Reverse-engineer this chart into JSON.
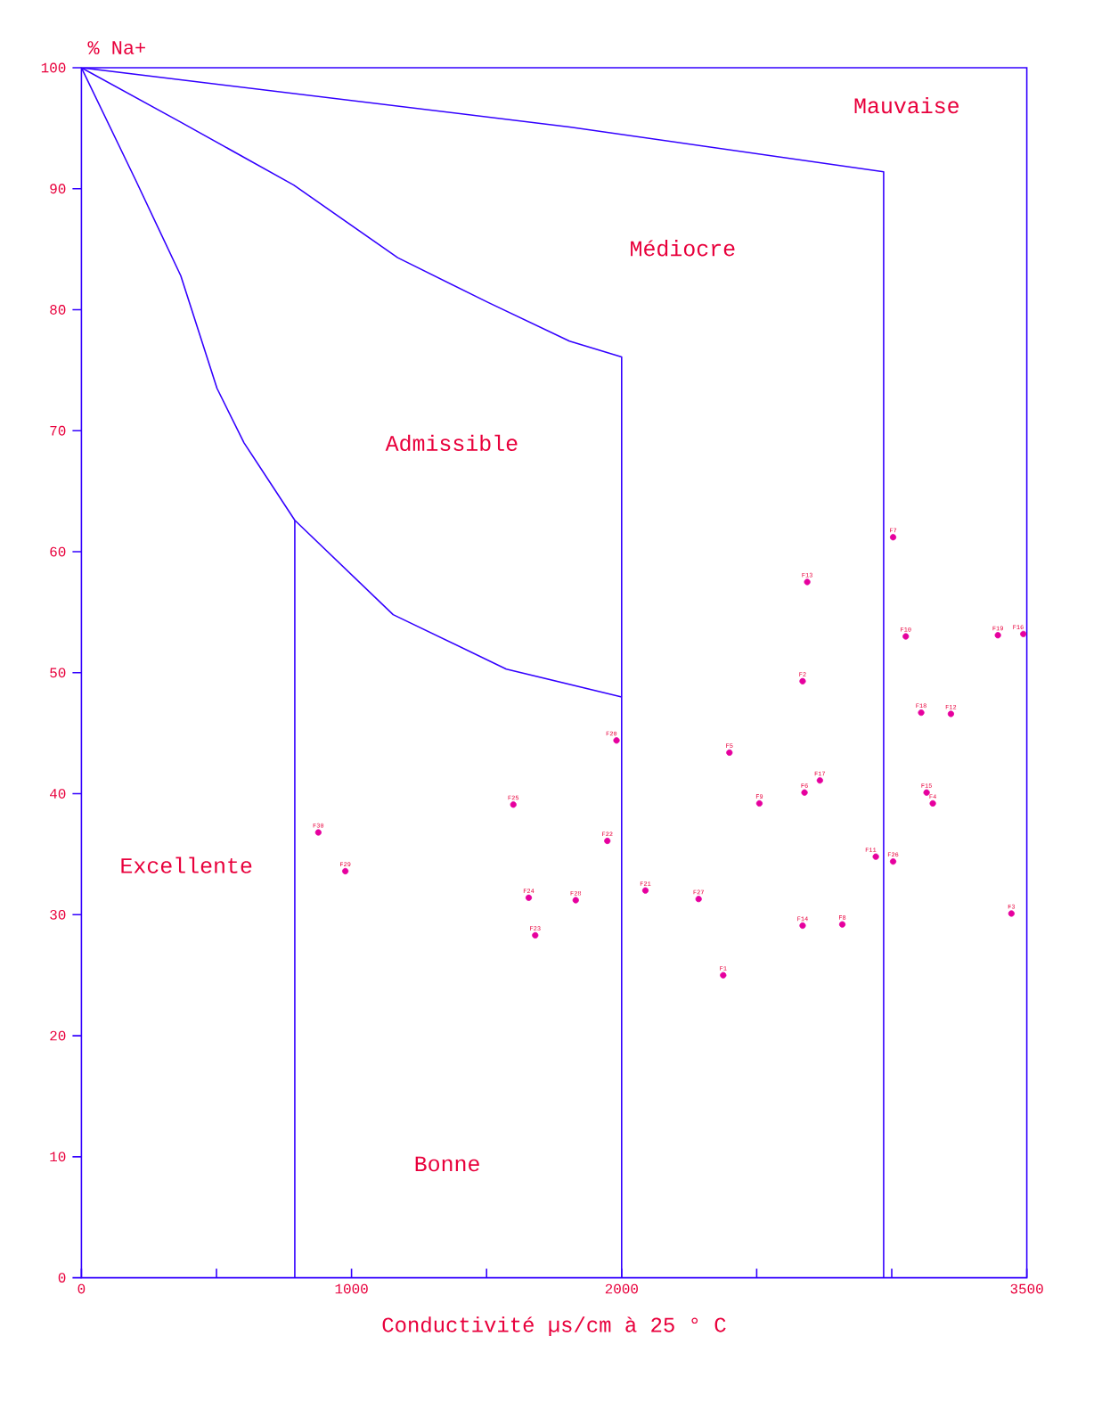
{
  "chart_data": {
    "type": "scatter",
    "xlabel": "Conductivité µs/cm à 25 ° C",
    "ylabel": "% Na+",
    "xlim": [
      0,
      3500
    ],
    "ylim": [
      0,
      100
    ],
    "xticks": [
      0,
      {
        "value": 500,
        "label": null
      },
      1000,
      {
        "value": 1500,
        "label": null
      },
      2000,
      {
        "value": 2500,
        "label": null
      },
      {
        "value": 3000,
        "label": null
      },
      3500
    ],
    "yticks": [
      0,
      10,
      20,
      30,
      40,
      50,
      60,
      70,
      80,
      90,
      100
    ],
    "grid": false,
    "annotations": [
      "Mauvaise",
      "Médiocre",
      "Admissible",
      "Excellente",
      "Bonne"
    ],
    "series": [
      {
        "color": "#e6009e",
        "marker": "circle",
        "x": [
          2376,
          2670,
          3443,
          3152,
          2399,
          2677,
          3005,
          2817,
          2510,
          3052,
          2941,
          3219,
          2687,
          2670,
          3129,
          3487,
          2734,
          3109,
          3393,
          1981,
          2088,
          1947,
          1680,
          1656,
          1599,
          3005,
          2285,
          1830,
          977,
          877
        ],
        "values": [
          25.0,
          49.3,
          30.1,
          39.2,
          43.4,
          40.1,
          61.2,
          29.2,
          39.2,
          53.0,
          34.8,
          46.6,
          57.5,
          29.1,
          40.1,
          53.2,
          41.1,
          46.7,
          53.1,
          44.4,
          32.0,
          36.1,
          28.3,
          31.4,
          39.1,
          34.4,
          31.3,
          31.2,
          33.6,
          36.8
        ],
        "value_labels": [
          "F1",
          "F2",
          "F3",
          "F4",
          "F5",
          "F6",
          "F7",
          "F8",
          "F9",
          "F10",
          "F11",
          "F12",
          "F13",
          "F14",
          "F15",
          "F16",
          "F17",
          "F18",
          "F19",
          "F20",
          "F21",
          "F22",
          "F23",
          "F24",
          "F25",
          "F26",
          "F27",
          "F28",
          "F29",
          "F30"
        ]
      },
      {
        "type": "line",
        "color": "#3300ff",
        "x": [
          0,
          201,
          368,
          502,
          602,
          790,
          1154,
          1573,
          2000
        ],
        "values": [
          100,
          90.7,
          82.8,
          73.5,
          69.0,
          62.6,
          54.8,
          50.3,
          48.0
        ]
      },
      {
        "type": "line",
        "color": "#3300ff",
        "x": [
          0,
          368,
          786,
          1171,
          1506,
          1807,
          2000,
          2000
        ],
        "values": [
          100,
          95.5,
          90.3,
          84.3,
          80.6,
          77.4,
          76.1,
          0
        ]
      },
      {
        "type": "line",
        "color": "#3300ff",
        "x": [
          0,
          1807,
          2970,
          2970
        ],
        "values": [
          100,
          95.1,
          91.4,
          0
        ]
      },
      {
        "type": "line",
        "color": "#3300ff",
        "x": [
          790,
          790
        ],
        "values": [
          0,
          62.6
        ]
      }
    ]
  }
}
